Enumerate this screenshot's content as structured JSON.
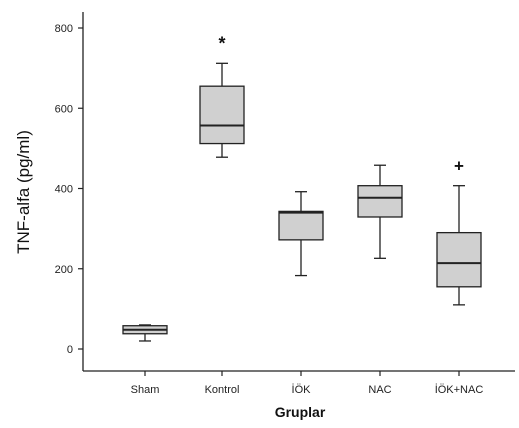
{
  "chart_data": {
    "type": "boxplot",
    "xlabel": "Gruplar",
    "ylabel": "TNF-alfa (pg/ml)",
    "ylim": [
      -30,
      830
    ],
    "yticks": [
      "0",
      "200",
      "400",
      "600",
      "800"
    ],
    "ytick_values": [
      0,
      200,
      400,
      600,
      800
    ],
    "grid": false,
    "box_color": "#d0d0d0",
    "categories": [
      "Sham",
      "Kontrol",
      "İÖK",
      "NAC",
      "İÖK+NAC"
    ],
    "boxes": [
      {
        "category": "Sham",
        "min": 20,
        "q1": 38,
        "median": 48,
        "q3": 58,
        "max": 60,
        "marker": ""
      },
      {
        "category": "Kontrol",
        "min": 478,
        "q1": 512,
        "median": 557,
        "q3": 655,
        "max": 712,
        "marker": "*"
      },
      {
        "category": "İÖK",
        "min": 183,
        "q1": 272,
        "median": 340,
        "q3": 343,
        "max": 392,
        "marker": ""
      },
      {
        "category": "NAC",
        "min": 226,
        "q1": 329,
        "median": 377,
        "q3": 407,
        "max": 458,
        "marker": ""
      },
      {
        "category": "İÖK+NAC",
        "min": 110,
        "q1": 155,
        "median": 214,
        "q3": 290,
        "max": 407,
        "marker": "+"
      }
    ]
  }
}
